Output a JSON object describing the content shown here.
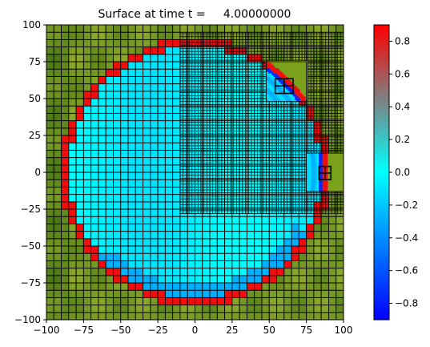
{
  "chart_data": {
    "type": "heatmap",
    "title": "Surface at time t =     4.00000000",
    "xlabel": "",
    "ylabel": "",
    "xlim": [
      -100,
      100
    ],
    "ylim": [
      -100,
      100
    ],
    "x_ticks": [
      -100,
      -75,
      -50,
      -25,
      0,
      25,
      50,
      75,
      100
    ],
    "y_ticks": [
      -100,
      -75,
      -50,
      -25,
      0,
      25,
      50,
      75,
      100
    ],
    "x_tick_labels": [
      "−100",
      "−75",
      "−50",
      "−25",
      "0",
      "25",
      "50",
      "75",
      "100"
    ],
    "y_tick_labels": [
      "−100",
      "−75",
      "−50",
      "−25",
      "0",
      "25",
      "50",
      "75",
      "100"
    ],
    "grid": false,
    "colorbar": {
      "range": [
        -0.9,
        0.9
      ],
      "ticks": [
        -0.8,
        -0.6,
        -0.4,
        -0.2,
        0.0,
        0.2,
        0.4,
        0.6,
        0.8
      ],
      "tick_labels": [
        "−0.8",
        "−0.6",
        "−0.4",
        "−0.2",
        "0.0",
        "0.2",
        "0.4",
        "0.6",
        "0.8"
      ],
      "colors": [
        [
          0.0,
          "#0000ff"
        ],
        [
          0.25,
          "#0080ff"
        ],
        [
          0.5,
          "#00ffff"
        ],
        [
          0.75,
          "#808080"
        ],
        [
          1.0,
          "#ff0000"
        ]
      ]
    },
    "surface": {
      "background_value": 0.62,
      "background_color": "#7aa21c",
      "ring_center": [
        0,
        0
      ],
      "ring_radius": 88,
      "ring_value": 0.85,
      "interior_value": -0.05,
      "fine_grid_region": {
        "x": [
          -10,
          100
        ],
        "y": [
          -28,
          95
        ]
      },
      "refined_patches": [
        {
          "x": [
            48,
            75
          ],
          "y": [
            48,
            75
          ]
        },
        {
          "x": [
            75,
            100
          ],
          "y": [
            -13,
            13
          ]
        }
      ]
    }
  }
}
